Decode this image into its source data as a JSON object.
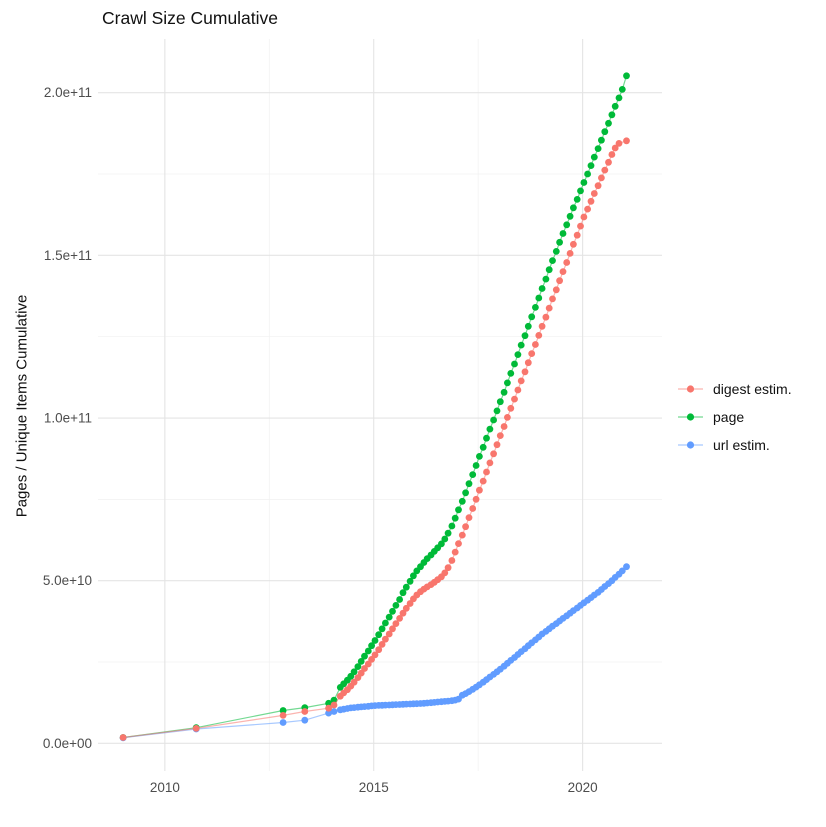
{
  "title": "Crawl Size Cumulative",
  "chart_data": {
    "type": "scatter",
    "title": "Crawl Size Cumulative",
    "xlabel": "",
    "ylabel": "Pages / Unique Items Cumulative",
    "value_unit": "1e9 (values below are billions of items)",
    "xlim": [
      2008.4,
      2021.9
    ],
    "ylim_e9": [
      -8.5,
      216.5
    ],
    "x_ticks": [
      2010,
      2015,
      2020
    ],
    "x_tick_labels": [
      "2010",
      "2015",
      "2020"
    ],
    "x_minor_ticks": [
      2012.5,
      2017.5
    ],
    "y_ticks_e9": [
      0,
      50,
      100,
      150,
      200
    ],
    "y_tick_labels": [
      "0.0e+00",
      "5.0e+10",
      "1.0e+11",
      "1.5e+11",
      "2.0e+11"
    ],
    "y_minor_ticks_e9": [
      25,
      75,
      125,
      175
    ],
    "grid": "major+minor, no axis lines, white panel",
    "legend_position": "right-center",
    "series": [
      {
        "name": "digest estim.",
        "color": "#F8766D",
        "points": [
          [
            2009.0,
            1.8
          ],
          [
            2010.75,
            4.6
          ],
          [
            2012.83,
            8.6
          ],
          [
            2013.35,
            9.8
          ],
          [
            2013.92,
            10.8
          ],
          [
            2014.05,
            11.8
          ],
          [
            2014.2,
            14.5
          ],
          [
            2014.28,
            15.5
          ],
          [
            2014.37,
            16.5
          ],
          [
            2014.45,
            17.6
          ],
          [
            2014.53,
            18.8
          ],
          [
            2014.62,
            20.2
          ],
          [
            2014.7,
            21.6
          ],
          [
            2014.78,
            23.0
          ],
          [
            2014.87,
            24.4
          ],
          [
            2014.95,
            25.8
          ],
          [
            2015.03,
            27.2
          ],
          [
            2015.12,
            28.8
          ],
          [
            2015.2,
            30.4
          ],
          [
            2015.28,
            32.0
          ],
          [
            2015.37,
            33.6
          ],
          [
            2015.45,
            35.2
          ],
          [
            2015.53,
            36.8
          ],
          [
            2015.62,
            38.4
          ],
          [
            2015.7,
            40.0
          ],
          [
            2015.78,
            41.5
          ],
          [
            2015.87,
            43.0
          ],
          [
            2015.95,
            44.4
          ],
          [
            2016.03,
            45.6
          ],
          [
            2016.12,
            46.6
          ],
          [
            2016.2,
            47.4
          ],
          [
            2016.28,
            48.1
          ],
          [
            2016.37,
            48.8
          ],
          [
            2016.45,
            49.5
          ],
          [
            2016.53,
            50.3
          ],
          [
            2016.62,
            51.2
          ],
          [
            2016.7,
            52.4
          ],
          [
            2016.78,
            54.0
          ],
          [
            2016.87,
            56.2
          ],
          [
            2016.95,
            58.8
          ],
          [
            2017.03,
            61.4
          ],
          [
            2017.12,
            64.0
          ],
          [
            2017.2,
            66.6
          ],
          [
            2017.28,
            69.4
          ],
          [
            2017.37,
            72.2
          ],
          [
            2017.45,
            75.0
          ],
          [
            2017.53,
            77.8
          ],
          [
            2017.62,
            80.6
          ],
          [
            2017.7,
            83.4
          ],
          [
            2017.78,
            86.2
          ],
          [
            2017.87,
            89.0
          ],
          [
            2017.95,
            91.8
          ],
          [
            2018.03,
            94.6
          ],
          [
            2018.12,
            97.4
          ],
          [
            2018.2,
            100.2
          ],
          [
            2018.28,
            103.0
          ],
          [
            2018.37,
            105.8
          ],
          [
            2018.45,
            108.6
          ],
          [
            2018.53,
            111.4
          ],
          [
            2018.62,
            114.2
          ],
          [
            2018.7,
            117.0
          ],
          [
            2018.78,
            119.8
          ],
          [
            2018.87,
            122.6
          ],
          [
            2018.95,
            125.4
          ],
          [
            2019.03,
            128.2
          ],
          [
            2019.12,
            131.0
          ],
          [
            2019.2,
            133.8
          ],
          [
            2019.28,
            136.6
          ],
          [
            2019.37,
            139.4
          ],
          [
            2019.45,
            142.2
          ],
          [
            2019.53,
            145.0
          ],
          [
            2019.62,
            147.8
          ],
          [
            2019.7,
            150.6
          ],
          [
            2019.78,
            153.4
          ],
          [
            2019.87,
            156.2
          ],
          [
            2019.95,
            159.0
          ],
          [
            2020.03,
            161.8
          ],
          [
            2020.12,
            164.2
          ],
          [
            2020.2,
            166.6
          ],
          [
            2020.28,
            169.0
          ],
          [
            2020.37,
            171.4
          ],
          [
            2020.45,
            173.8
          ],
          [
            2020.53,
            176.2
          ],
          [
            2020.62,
            178.6
          ],
          [
            2020.7,
            181.0
          ],
          [
            2020.78,
            183.0
          ],
          [
            2020.87,
            184.4
          ],
          [
            2021.05,
            185.2
          ]
        ]
      },
      {
        "name": "page",
        "color": "#00BA38",
        "points": [
          [
            2009.0,
            1.8
          ],
          [
            2010.75,
            4.8
          ],
          [
            2012.83,
            10.1
          ],
          [
            2013.35,
            11.0
          ],
          [
            2013.92,
            12.3
          ],
          [
            2014.05,
            13.3
          ],
          [
            2014.2,
            17.2
          ],
          [
            2014.28,
            18.3
          ],
          [
            2014.37,
            19.4
          ],
          [
            2014.45,
            20.6
          ],
          [
            2014.53,
            22.0
          ],
          [
            2014.62,
            23.6
          ],
          [
            2014.7,
            25.2
          ],
          [
            2014.78,
            26.8
          ],
          [
            2014.87,
            28.4
          ],
          [
            2014.95,
            30.0
          ],
          [
            2015.03,
            31.6
          ],
          [
            2015.12,
            33.4
          ],
          [
            2015.2,
            35.2
          ],
          [
            2015.28,
            37.0
          ],
          [
            2015.37,
            38.8
          ],
          [
            2015.45,
            40.6
          ],
          [
            2015.53,
            42.4
          ],
          [
            2015.62,
            44.2
          ],
          [
            2015.7,
            46.3
          ],
          [
            2015.78,
            48.0
          ],
          [
            2015.87,
            49.8
          ],
          [
            2015.95,
            51.5
          ],
          [
            2016.03,
            53.0
          ],
          [
            2016.12,
            54.3
          ],
          [
            2016.2,
            55.6
          ],
          [
            2016.28,
            56.8
          ],
          [
            2016.37,
            57.9
          ],
          [
            2016.45,
            59.0
          ],
          [
            2016.53,
            60.1
          ],
          [
            2016.62,
            61.3
          ],
          [
            2016.7,
            62.8
          ],
          [
            2016.78,
            64.6
          ],
          [
            2016.87,
            66.8
          ],
          [
            2016.95,
            69.2
          ],
          [
            2017.03,
            71.8
          ],
          [
            2017.12,
            74.4
          ],
          [
            2017.2,
            77.0
          ],
          [
            2017.28,
            79.8
          ],
          [
            2017.37,
            82.6
          ],
          [
            2017.45,
            85.4
          ],
          [
            2017.53,
            88.2
          ],
          [
            2017.62,
            91.0
          ],
          [
            2017.7,
            93.8
          ],
          [
            2017.78,
            96.6
          ],
          [
            2017.87,
            99.4
          ],
          [
            2017.95,
            102.2
          ],
          [
            2018.03,
            105.0
          ],
          [
            2018.12,
            107.9
          ],
          [
            2018.2,
            110.8
          ],
          [
            2018.28,
            113.7
          ],
          [
            2018.37,
            116.6
          ],
          [
            2018.45,
            119.5
          ],
          [
            2018.53,
            122.4
          ],
          [
            2018.62,
            125.3
          ],
          [
            2018.7,
            128.2
          ],
          [
            2018.78,
            131.1
          ],
          [
            2018.87,
            134.0
          ],
          [
            2018.95,
            136.9
          ],
          [
            2019.03,
            139.8
          ],
          [
            2019.12,
            142.7
          ],
          [
            2019.2,
            145.6
          ],
          [
            2019.28,
            148.4
          ],
          [
            2019.37,
            151.2
          ],
          [
            2019.45,
            154.0
          ],
          [
            2019.53,
            156.7
          ],
          [
            2019.62,
            159.4
          ],
          [
            2019.7,
            162.0
          ],
          [
            2019.78,
            164.6
          ],
          [
            2019.87,
            167.2
          ],
          [
            2019.95,
            169.8
          ],
          [
            2020.03,
            172.4
          ],
          [
            2020.12,
            175.0
          ],
          [
            2020.2,
            177.6
          ],
          [
            2020.28,
            180.2
          ],
          [
            2020.37,
            182.8
          ],
          [
            2020.45,
            185.4
          ],
          [
            2020.53,
            188.0
          ],
          [
            2020.62,
            190.6
          ],
          [
            2020.7,
            193.2
          ],
          [
            2020.78,
            195.8
          ],
          [
            2020.87,
            198.4
          ],
          [
            2020.95,
            201.0
          ],
          [
            2021.05,
            205.2
          ]
        ]
      },
      {
        "name": "url estim.",
        "color": "#619CFF",
        "points": [
          [
            2009.0,
            1.7
          ],
          [
            2010.75,
            4.4
          ],
          [
            2012.83,
            6.4
          ],
          [
            2013.35,
            7.1
          ],
          [
            2013.92,
            9.3
          ],
          [
            2014.05,
            9.8
          ],
          [
            2014.2,
            10.3
          ],
          [
            2014.28,
            10.5
          ],
          [
            2014.37,
            10.7
          ],
          [
            2014.45,
            10.9
          ],
          [
            2014.53,
            11.0
          ],
          [
            2014.62,
            11.1
          ],
          [
            2014.7,
            11.2
          ],
          [
            2014.78,
            11.3
          ],
          [
            2014.87,
            11.4
          ],
          [
            2014.95,
            11.5
          ],
          [
            2015.03,
            11.6
          ],
          [
            2015.12,
            11.65
          ],
          [
            2015.2,
            11.7
          ],
          [
            2015.28,
            11.75
          ],
          [
            2015.37,
            11.8
          ],
          [
            2015.45,
            11.85
          ],
          [
            2015.53,
            11.9
          ],
          [
            2015.62,
            11.95
          ],
          [
            2015.7,
            12.0
          ],
          [
            2015.78,
            12.05
          ],
          [
            2015.87,
            12.1
          ],
          [
            2015.95,
            12.15
          ],
          [
            2016.03,
            12.2
          ],
          [
            2016.12,
            12.25
          ],
          [
            2016.2,
            12.3
          ],
          [
            2016.28,
            12.4
          ],
          [
            2016.37,
            12.5
          ],
          [
            2016.45,
            12.6
          ],
          [
            2016.53,
            12.7
          ],
          [
            2016.62,
            12.8
          ],
          [
            2016.7,
            12.9
          ],
          [
            2016.78,
            13.0
          ],
          [
            2016.87,
            13.1
          ],
          [
            2016.95,
            13.3
          ],
          [
            2017.03,
            13.6
          ],
          [
            2017.12,
            14.8
          ],
          [
            2017.2,
            15.3
          ],
          [
            2017.28,
            15.9
          ],
          [
            2017.37,
            16.6
          ],
          [
            2017.45,
            17.3
          ],
          [
            2017.53,
            18.0
          ],
          [
            2017.62,
            18.8
          ],
          [
            2017.7,
            19.6
          ],
          [
            2017.78,
            20.4
          ],
          [
            2017.87,
            21.2
          ],
          [
            2017.95,
            22.0
          ],
          [
            2018.03,
            22.8
          ],
          [
            2018.12,
            23.7
          ],
          [
            2018.2,
            24.6
          ],
          [
            2018.28,
            25.5
          ],
          [
            2018.37,
            26.4
          ],
          [
            2018.45,
            27.3
          ],
          [
            2018.53,
            28.2
          ],
          [
            2018.62,
            29.1
          ],
          [
            2018.7,
            30.0
          ],
          [
            2018.78,
            30.9
          ],
          [
            2018.87,
            31.8
          ],
          [
            2018.95,
            32.7
          ],
          [
            2019.03,
            33.6
          ],
          [
            2019.12,
            34.4
          ],
          [
            2019.2,
            35.2
          ],
          [
            2019.28,
            36.0
          ],
          [
            2019.37,
            36.8
          ],
          [
            2019.45,
            37.6
          ],
          [
            2019.53,
            38.4
          ],
          [
            2019.62,
            39.2
          ],
          [
            2019.7,
            40.0
          ],
          [
            2019.78,
            40.8
          ],
          [
            2019.87,
            41.6
          ],
          [
            2019.95,
            42.4
          ],
          [
            2020.03,
            43.2
          ],
          [
            2020.12,
            44.0
          ],
          [
            2020.2,
            44.8
          ],
          [
            2020.28,
            45.6
          ],
          [
            2020.37,
            46.4
          ],
          [
            2020.45,
            47.3
          ],
          [
            2020.53,
            48.2
          ],
          [
            2020.62,
            49.1
          ],
          [
            2020.7,
            50.0
          ],
          [
            2020.78,
            51.0
          ],
          [
            2020.87,
            52.0
          ],
          [
            2020.95,
            53.0
          ],
          [
            2021.05,
            54.3
          ]
        ]
      }
    ]
  },
  "legend": {
    "items": [
      {
        "label": "digest estim.",
        "color": "#F8766D"
      },
      {
        "label": "page",
        "color": "#00BA38"
      },
      {
        "label": "url estim.",
        "color": "#619CFF"
      }
    ]
  },
  "colors": {
    "background": "#ffffff",
    "grid_major": "#e4e4e4",
    "grid_minor": "#f1f1f1",
    "axis_text": "#4d4d4d",
    "title_text": "#111111"
  }
}
